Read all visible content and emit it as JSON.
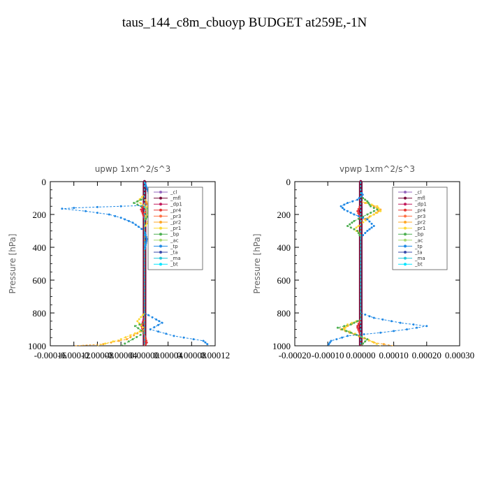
{
  "title": "taus_144_c8m_cbuoyp  BUDGET at259E,-1N",
  "chart_data": [
    {
      "type": "line",
      "title": "upwp   1xm^2/s^3",
      "ylabel": "Pressure [hPa]",
      "ylim": [
        1000,
        0
      ],
      "xlim": [
        -0.00016,
        0.00012
      ],
      "yticks": [
        "0",
        "200",
        "400",
        "600",
        "800",
        "1000"
      ],
      "xticks": [
        "-0.00016",
        "-0.00012",
        "-0.00008",
        "-0.00004",
        "0.00000",
        "0.00004",
        "0.00008",
        "0.00012"
      ],
      "legend": [
        "_cl",
        "_mfl",
        "_dp1",
        "_pr4",
        "_pr3",
        "_pr2",
        "_pr1",
        "_bp",
        "_ac",
        "_tp",
        "_ta",
        "_ma",
        "_bt"
      ],
      "series": [
        {
          "name": "_cl",
          "color": "#9467bd",
          "points": [
            [
              0,
              0
            ],
            [
              0,
              1000
            ]
          ]
        },
        {
          "name": "_mfl",
          "color": "#7a0b3a",
          "points": [
            [
              0,
              0
            ],
            [
              0,
              1000
            ]
          ]
        },
        {
          "name": "_dp1",
          "color": "#c2185b",
          "points": [
            [
              0,
              0
            ],
            [
              0,
              120
            ],
            [
              -4e-06,
              180
            ],
            [
              0,
              230
            ],
            [
              0,
              820
            ],
            [
              -5e-06,
              880
            ],
            [
              0,
              940
            ],
            [
              3e-06,
              1000
            ]
          ]
        },
        {
          "name": "_pr4",
          "color": "#e53935",
          "points": [
            [
              0,
              0
            ],
            [
              0,
              130
            ],
            [
              -6e-06,
              170
            ],
            [
              0,
              220
            ],
            [
              0,
              840
            ],
            [
              -5e-06,
              880
            ],
            [
              0,
              930
            ],
            [
              4e-06,
              980
            ],
            [
              0,
              1000
            ]
          ]
        },
        {
          "name": "_pr3",
          "color": "#ff7043",
          "points": [
            [
              0,
              0
            ],
            [
              0,
              120
            ],
            [
              2e-06,
              160
            ],
            [
              0,
              200
            ],
            [
              0,
              1000
            ]
          ]
        },
        {
          "name": "_pr2",
          "color": "#ffa726",
          "points": [
            [
              0,
              0
            ],
            [
              0,
              100
            ],
            [
              8e-06,
              160
            ],
            [
              0,
              240
            ],
            [
              0,
              900
            ],
            [
              -3e-05,
              960
            ],
            [
              -7e-05,
              990
            ],
            [
              -0.00012,
              1000
            ]
          ]
        },
        {
          "name": "_pr1",
          "color": "#fdd835",
          "points": [
            [
              0,
              0
            ],
            [
              0,
              80
            ],
            [
              -1.2e-05,
              120
            ],
            [
              1.6e-05,
              180
            ],
            [
              8e-06,
              230
            ],
            [
              0,
              280
            ],
            [
              0,
              800
            ],
            [
              -1.2e-05,
              850
            ],
            [
              0,
              900
            ],
            [
              -4e-05,
              960
            ],
            [
              -8e-05,
              1000
            ]
          ]
        },
        {
          "name": "_bp",
          "color": "#4caf50",
          "points": [
            [
              0,
              0
            ],
            [
              0,
              100
            ],
            [
              -1.8e-05,
              130
            ],
            [
              0,
              160
            ],
            [
              2e-05,
              170
            ],
            [
              8e-06,
              200
            ],
            [
              0,
              240
            ],
            [
              0,
              860
            ],
            [
              -1.6e-05,
              880
            ],
            [
              0,
              920
            ],
            [
              -2e-05,
              960
            ],
            [
              -4e-05,
              1000
            ]
          ]
        },
        {
          "name": "_ac",
          "color": "#a5d86e",
          "points": [
            [
              0,
              0
            ],
            [
              0,
              150
            ],
            [
              6e-06,
              180
            ],
            [
              0,
              220
            ],
            [
              0,
              1000
            ]
          ]
        },
        {
          "name": "_tp",
          "color": "#1e88e5",
          "points": [
            [
              0,
              0
            ],
            [
              8e-06,
              80
            ],
            [
              1.6e-05,
              100
            ],
            [
              2e-05,
              130
            ],
            [
              0,
              145
            ],
            [
              -4e-05,
              150
            ],
            [
              -8e-05,
              155
            ],
            [
              -0.00012,
              160
            ],
            [
              -0.00014,
              165
            ],
            [
              -0.0001,
              180
            ],
            [
              -6e-05,
              200
            ],
            [
              -4e-05,
              220
            ],
            [
              -2e-05,
              250
            ],
            [
              0,
              300
            ],
            [
              4e-06,
              350
            ],
            [
              0,
              420
            ],
            [
              0,
              800
            ],
            [
              2e-05,
              840
            ],
            [
              3e-05,
              860
            ],
            [
              1e-05,
              900
            ],
            [
              5e-05,
              940
            ],
            [
              0.0001,
              970
            ],
            [
              0.00011,
              1000
            ]
          ]
        },
        {
          "name": "_ta",
          "color": "#3949ab",
          "points": [
            [
              0,
              0
            ],
            [
              0,
              1000
            ]
          ]
        },
        {
          "name": "_ma",
          "color": "#26c6da",
          "points": [
            [
              0,
              0
            ],
            [
              0,
              1000
            ]
          ]
        },
        {
          "name": "_bt",
          "color": "#00e5ff",
          "points": [
            [
              0,
              0
            ],
            [
              0,
              1000
            ]
          ]
        }
      ]
    },
    {
      "type": "line",
      "title": "vpwp   1xm^2/s^3",
      "ylabel": "Pressure [hPa]",
      "ylim": [
        1000,
        0
      ],
      "xlim": [
        -0.0002,
        0.0003
      ],
      "yticks": [
        "0",
        "200",
        "400",
        "600",
        "800",
        "1000"
      ],
      "xticks": [
        "-0.00020",
        "-0.00010",
        "0.00000",
        "0.00010",
        "0.00020",
        "0.00030"
      ],
      "legend": [
        "_cl",
        "_mfl",
        "_dp1",
        "_pr4",
        "_pr3",
        "_pr2",
        "_pr1",
        "_bp",
        "_ac",
        "_tp",
        "_ta",
        "_ma",
        "_bt"
      ],
      "series": [
        {
          "name": "_cl",
          "color": "#9467bd",
          "points": [
            [
              0,
              0
            ],
            [
              0,
              1000
            ]
          ]
        },
        {
          "name": "_mfl",
          "color": "#7a0b3a",
          "points": [
            [
              0,
              0
            ],
            [
              0,
              1000
            ]
          ]
        },
        {
          "name": "_dp1",
          "color": "#c2185b",
          "points": [
            [
              0,
              0
            ],
            [
              0,
              140
            ],
            [
              -8e-06,
              180
            ],
            [
              0,
              230
            ],
            [
              0,
              840
            ],
            [
              -1e-05,
              880
            ],
            [
              0,
              930
            ],
            [
              0,
              1000
            ]
          ]
        },
        {
          "name": "_pr4",
          "color": "#e53935",
          "points": [
            [
              0,
              0
            ],
            [
              0,
              140
            ],
            [
              -1e-05,
              180
            ],
            [
              0,
              230
            ],
            [
              0,
              840
            ],
            [
              -1e-05,
              890
            ],
            [
              0,
              940
            ],
            [
              0,
              1000
            ]
          ]
        },
        {
          "name": "_pr3",
          "color": "#ff7043",
          "points": [
            [
              0,
              0
            ],
            [
              0,
              1000
            ]
          ]
        },
        {
          "name": "_pr2",
          "color": "#ffa726",
          "points": [
            [
              0,
              0
            ],
            [
              0,
              120
            ],
            [
              4e-05,
              150
            ],
            [
              6e-05,
              170
            ],
            [
              4e-05,
              200
            ],
            [
              0,
              240
            ],
            [
              0,
              840
            ],
            [
              -4e-05,
              880
            ],
            [
              -6e-05,
              900
            ],
            [
              -2e-05,
              930
            ],
            [
              4e-05,
              980
            ],
            [
              0.0001,
              1000
            ]
          ]
        },
        {
          "name": "_pr1",
          "color": "#fdd835",
          "points": [
            [
              0,
              0
            ],
            [
              0,
              120
            ],
            [
              5e-05,
              150
            ],
            [
              6e-05,
              180
            ],
            [
              3e-05,
              210
            ],
            [
              0,
              260
            ],
            [
              -2e-05,
              290
            ],
            [
              0,
              320
            ],
            [
              0,
              840
            ],
            [
              -4e-05,
              870
            ],
            [
              -5e-05,
              900
            ],
            [
              0,
              940
            ],
            [
              6e-05,
              1000
            ]
          ]
        },
        {
          "name": "_bp",
          "color": "#4caf50",
          "points": [
            [
              0,
              0
            ],
            [
              0,
              90
            ],
            [
              2e-05,
              120
            ],
            [
              3e-05,
              150
            ],
            [
              5e-05,
              170
            ],
            [
              2e-05,
              200
            ],
            [
              -2e-05,
              240
            ],
            [
              -4e-05,
              270
            ],
            [
              -1e-05,
              300
            ],
            [
              0,
              340
            ],
            [
              0,
              840
            ],
            [
              -3e-05,
              870
            ],
            [
              -7e-05,
              890
            ],
            [
              -3e-05,
              920
            ],
            [
              2e-05,
              960
            ],
            [
              0,
              1000
            ]
          ]
        },
        {
          "name": "_ac",
          "color": "#a5d86e",
          "points": [
            [
              0,
              0
            ],
            [
              0,
              1000
            ]
          ]
        },
        {
          "name": "_tp",
          "color": "#1e88e5",
          "points": [
            [
              0,
              0
            ],
            [
              0,
              60
            ],
            [
              6e-06,
              80
            ],
            [
              -1e-05,
              110
            ],
            [
              -4e-05,
              130
            ],
            [
              -6e-05,
              150
            ],
            [
              -5e-05,
              170
            ],
            [
              -2e-05,
              200
            ],
            [
              2e-05,
              230
            ],
            [
              4e-05,
              270
            ],
            [
              2e-05,
              300
            ],
            [
              0,
              340
            ],
            [
              0,
              800
            ],
            [
              4e-05,
              830
            ],
            [
              0.00012,
              860
            ],
            [
              0.0002,
              880
            ],
            [
              0.00014,
              900
            ],
            [
              6e-05,
              920
            ],
            [
              -4e-05,
              940
            ],
            [
              -9e-05,
              970
            ],
            [
              -0.0001,
              1000
            ]
          ]
        },
        {
          "name": "_ta",
          "color": "#3949ab",
          "points": [
            [
              0,
              0
            ],
            [
              0,
              1000
            ]
          ]
        },
        {
          "name": "_ma",
          "color": "#26c6da",
          "points": [
            [
              0,
              0
            ],
            [
              0,
              1000
            ]
          ]
        },
        {
          "name": "_bt",
          "color": "#00e5ff",
          "points": [
            [
              0,
              0
            ],
            [
              0,
              1000
            ]
          ]
        }
      ]
    }
  ]
}
